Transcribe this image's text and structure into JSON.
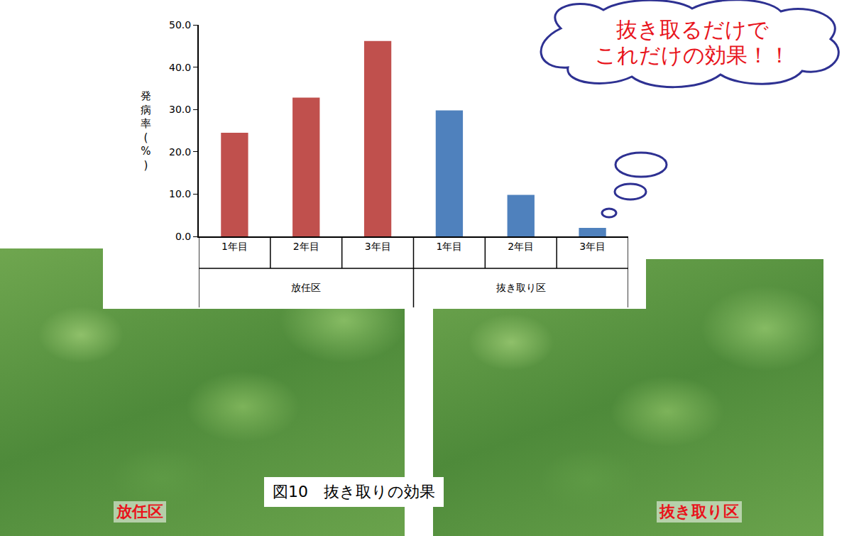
{
  "chart_data": {
    "type": "bar",
    "y_label": "発病率(%)",
    "categories": [
      "1年目",
      "2年目",
      "3年目",
      "1年目",
      "2年目",
      "3年目"
    ],
    "groups": [
      "放任区",
      "放任区",
      "放任区",
      "抜き取り区",
      "抜き取り区",
      "抜き取り区"
    ],
    "values": [
      24.5,
      32.8,
      46.2,
      29.8,
      9.8,
      2.0
    ],
    "colors": [
      "#c0504d",
      "#c0504d",
      "#c0504d",
      "#4f81bd",
      "#4f81bd",
      "#4f81bd"
    ],
    "ylim": [
      0,
      50
    ],
    "yticks": [
      {
        "value": 0,
        "label": "0.0"
      },
      {
        "value": 10,
        "label": "10.0"
      },
      {
        "value": 20,
        "label": "20.0"
      },
      {
        "value": 30,
        "label": "30.0"
      },
      {
        "value": 40,
        "label": "40.0"
      },
      {
        "value": 50,
        "label": "50.0"
      }
    ],
    "grid": false,
    "callout": [
      "抜き取るだけで",
      "これだけの効果！！"
    ],
    "caption": "図10　抜き取りの効果",
    "photo_labels": [
      "放任区",
      "抜き取り区"
    ]
  }
}
